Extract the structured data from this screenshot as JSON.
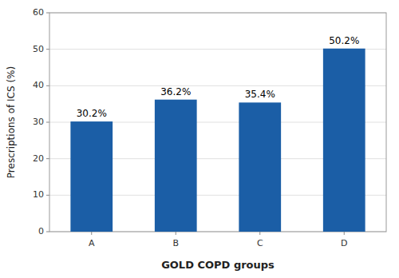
{
  "chart_data": {
    "type": "bar",
    "xlabel": "GOLD COPD groups",
    "ylabel": "Prescriptions of ICS (%)",
    "categories": [
      "A",
      "B",
      "C",
      "D"
    ],
    "values": [
      30.2,
      36.2,
      35.4,
      50.2
    ],
    "value_labels": [
      "30.2%",
      "36.2%",
      "35.4%",
      "50.2%"
    ],
    "data_labels": true,
    "color": "#1B5EA6",
    "ylim": [
      0,
      60
    ],
    "yticks": [
      0,
      10,
      20,
      30,
      40,
      50,
      60
    ],
    "grid": true
  }
}
